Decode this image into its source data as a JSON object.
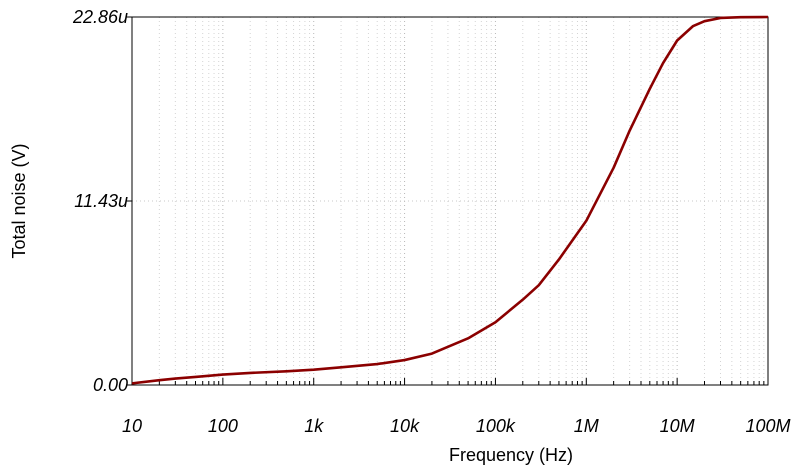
{
  "chart_data": {
    "type": "line",
    "title": "",
    "xlabel": "Frequency (Hz)",
    "ylabel": "Total noise (V)",
    "x_scale": "log",
    "xlim": [
      10,
      100000000
    ],
    "ylim": [
      0,
      22.86
    ],
    "y_unit": "u",
    "x_ticks": [
      {
        "value": 10,
        "label": "10"
      },
      {
        "value": 100,
        "label": "100"
      },
      {
        "value": 1000,
        "label": "1k"
      },
      {
        "value": 10000,
        "label": "10k"
      },
      {
        "value": 100000,
        "label": "100k"
      },
      {
        "value": 1000000,
        "label": "1M"
      },
      {
        "value": 10000000,
        "label": "10M"
      },
      {
        "value": 100000000,
        "label": "100M"
      }
    ],
    "y_ticks": [
      {
        "value": 0,
        "label": "0.00"
      },
      {
        "value": 11.43,
        "label": "11.43u"
      },
      {
        "value": 22.86,
        "label": "22.86u"
      }
    ],
    "grid": true,
    "line_color": "#8b0000",
    "series": [
      {
        "x": [
          10,
          20,
          30,
          50,
          100,
          200,
          500,
          1000,
          2000,
          5000,
          10000,
          20000,
          50000,
          100000,
          200000,
          300000,
          500000,
          1000000,
          2000000,
          3000000,
          5000000,
          7000000,
          10000000,
          15000000,
          20000000,
          30000000,
          50000000,
          100000000
        ],
        "y": [
          0.1,
          0.3,
          0.4,
          0.5,
          0.65,
          0.75,
          0.85,
          0.95,
          1.1,
          1.3,
          1.55,
          1.95,
          2.9,
          3.9,
          5.3,
          6.2,
          7.8,
          10.2,
          13.5,
          15.8,
          18.4,
          20.0,
          21.4,
          22.3,
          22.6,
          22.8,
          22.85,
          22.86
        ]
      }
    ]
  }
}
